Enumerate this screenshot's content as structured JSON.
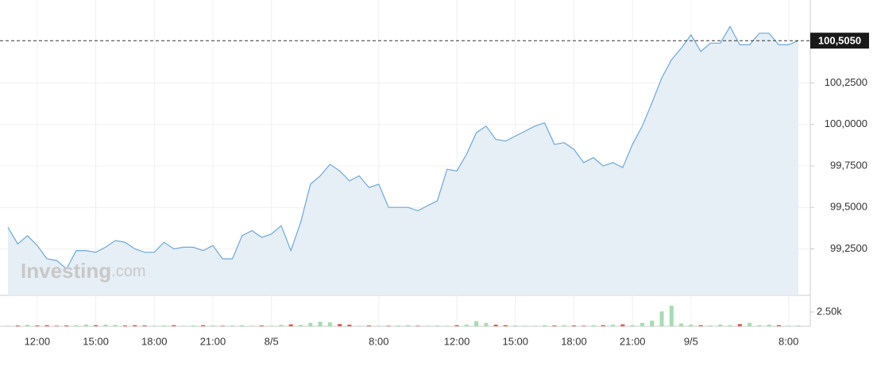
{
  "chart_data": [
    {
      "type": "area",
      "categories": [
        null,
        null,
        null,
        "12:00",
        null,
        null,
        null,
        null,
        null,
        "15:00",
        null,
        null,
        null,
        null,
        null,
        "18:00",
        null,
        null,
        null,
        null,
        null,
        "21:00",
        null,
        null,
        null,
        null,
        null,
        "8/5",
        null,
        null,
        null,
        null,
        null,
        null,
        null,
        null,
        null,
        null,
        "8:00",
        null,
        null,
        null,
        null,
        null,
        null,
        null,
        "12:00",
        null,
        null,
        null,
        null,
        null,
        "15:00",
        null,
        null,
        null,
        null,
        null,
        "18:00",
        null,
        null,
        null,
        null,
        null,
        "21:00",
        null,
        null,
        null,
        null,
        null,
        "9/5",
        null,
        null,
        null,
        null,
        null,
        null,
        null,
        null,
        null,
        "8:00",
        null
      ],
      "values": [
        99.38,
        99.28,
        99.33,
        99.27,
        99.19,
        99.18,
        99.13,
        99.24,
        99.24,
        99.23,
        99.26,
        99.3,
        99.29,
        99.25,
        99.23,
        99.23,
        99.29,
        99.25,
        99.26,
        99.26,
        99.24,
        99.27,
        99.19,
        99.19,
        99.33,
        99.36,
        99.32,
        99.34,
        99.39,
        99.24,
        99.41,
        99.64,
        99.69,
        99.76,
        99.72,
        99.66,
        99.69,
        99.62,
        99.64,
        99.5,
        99.5,
        99.5,
        99.48,
        99.51,
        99.54,
        99.73,
        99.72,
        99.82,
        99.95,
        99.99,
        99.91,
        99.9,
        99.93,
        99.96,
        99.99,
        100.01,
        99.88,
        99.89,
        99.85,
        99.77,
        99.8,
        99.75,
        99.77,
        99.74,
        99.88,
        99.99,
        100.13,
        100.28,
        100.39,
        100.46,
        100.54,
        100.44,
        100.49,
        100.49,
        100.59,
        100.48,
        100.48,
        100.55,
        100.55,
        100.48,
        100.48,
        100.505
      ],
      "color": "#6fa8d6",
      "fill_color": "#e6eef6",
      "ylim": [
        98.97,
        100.75
      ],
      "yticks": [
        {
          "value": 99.25,
          "label": "99,2500"
        },
        {
          "value": 99.5,
          "label": "99,5000"
        },
        {
          "value": 99.75,
          "label": "99,7500"
        },
        {
          "value": 100,
          "label": "100,0000"
        },
        {
          "value": 100.25,
          "label": "100,2500"
        }
      ],
      "last_price": 100.505,
      "last_price_label": "100,5050",
      "watermark": [
        "Investing",
        ".com"
      ],
      "grid": true
    },
    {
      "type": "bar",
      "values": [
        100,
        150,
        250,
        150,
        200,
        100,
        150,
        200,
        300,
        200,
        300,
        250,
        150,
        200,
        150,
        100,
        150,
        200,
        100,
        150,
        200,
        150,
        100,
        150,
        200,
        100,
        150,
        100,
        250,
        350,
        250,
        600,
        800,
        700,
        400,
        300,
        100,
        150,
        100,
        100,
        150,
        200,
        100,
        100,
        150,
        100,
        200,
        300,
        900,
        600,
        300,
        200,
        150,
        100,
        100,
        200,
        150,
        200,
        150,
        100,
        200,
        200,
        300,
        350,
        200,
        600,
        1000,
        2600,
        3600,
        500,
        300,
        200,
        150,
        300,
        200,
        400,
        600,
        200,
        300,
        200,
        100,
        150
      ],
      "up_color": "#a8dbb2",
      "down_color": "#e05a5a",
      "ylim": [
        0,
        5280
      ],
      "yticks": [
        {
          "value": 2500,
          "label": "2.50k"
        }
      ]
    }
  ]
}
